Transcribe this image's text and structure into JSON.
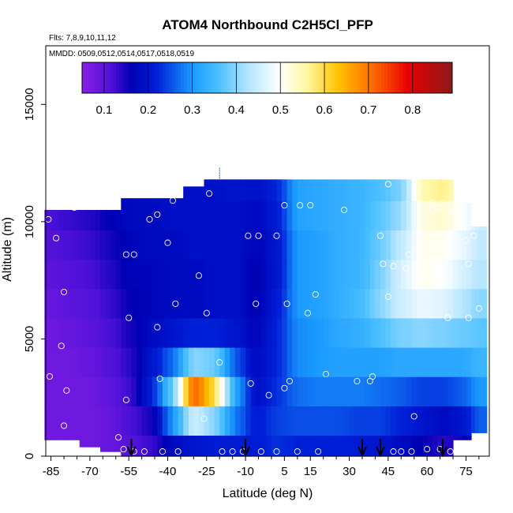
{
  "chart_data": {
    "type": "heatmap",
    "title": "ATOM4 Northbound C2H5Cl_PFP",
    "flights_note": "Flts: 7,8,9,10,11,12",
    "dates_note": "MMDD: 0509,0512,0514,0517,0518,0519",
    "xlabel": "Latitude (deg N)",
    "ylabel": "Altitude (m)",
    "xlim": [
      -87,
      84
    ],
    "ylim": [
      0,
      17500
    ],
    "x_ticks": [
      -85,
      -70,
      -55,
      -40,
      -25,
      -10,
      5,
      15,
      30,
      45,
      60,
      75
    ],
    "x_tick_labels": [
      "-85",
      "-70",
      "-55",
      "-40",
      "-25",
      "-10",
      "5",
      "15",
      "30",
      "45",
      "60",
      "75"
    ],
    "y_ticks": [
      0,
      5000,
      10000,
      15000
    ],
    "y_tick_labels": [
      "0",
      "5000",
      "10000",
      "15000"
    ],
    "colorbar": {
      "range": [
        0.05,
        0.89
      ],
      "ticks": [
        0.1,
        0.2,
        0.3,
        0.4,
        0.5,
        0.6,
        0.7,
        0.8
      ],
      "tick_labels": [
        "0.1",
        "0.2",
        "0.3",
        "0.4",
        "0.5",
        "0.6",
        "0.7",
        "0.8"
      ],
      "stops": [
        {
          "v": 0.05,
          "c": "#8a1fe6"
        },
        {
          "v": 0.12,
          "c": "#4a10d8"
        },
        {
          "v": 0.16,
          "c": "#0000b4"
        },
        {
          "v": 0.22,
          "c": "#0020d8"
        },
        {
          "v": 0.3,
          "c": "#1a9bff"
        },
        {
          "v": 0.36,
          "c": "#4cc0ff"
        },
        {
          "v": 0.43,
          "c": "#b8e6ff"
        },
        {
          "v": 0.5,
          "c": "#ffffff"
        },
        {
          "v": 0.56,
          "c": "#fff7a0"
        },
        {
          "v": 0.63,
          "c": "#ffc400"
        },
        {
          "v": 0.71,
          "c": "#ff6a00"
        },
        {
          "v": 0.79,
          "c": "#e80000"
        },
        {
          "v": 0.89,
          "c": "#8b1a1a"
        }
      ]
    },
    "grid": false,
    "columns": [
      {
        "lat": -86,
        "top": 10500,
        "bottom": 700,
        "vals": [
          0.13,
          0.12,
          0.11,
          0.1,
          0.09,
          0.08,
          0.08,
          0.08,
          0.08,
          0.08
        ]
      },
      {
        "lat": -78,
        "top": 10500,
        "bottom": 700,
        "vals": [
          0.14,
          0.13,
          0.12,
          0.11,
          0.1,
          0.09,
          0.08,
          0.08,
          0.08,
          0.08
        ]
      },
      {
        "lat": -70,
        "top": 10500,
        "bottom": 400,
        "vals": [
          0.15,
          0.14,
          0.13,
          0.12,
          0.11,
          0.1,
          0.09,
          0.08,
          0.08,
          0.08
        ]
      },
      {
        "lat": -62,
        "top": 10500,
        "bottom": 200,
        "vals": [
          0.17,
          0.16,
          0.15,
          0.14,
          0.13,
          0.12,
          0.11,
          0.1,
          0.09,
          0.09
        ]
      },
      {
        "lat": -54,
        "top": 11000,
        "bottom": 0,
        "vals": [
          0.18,
          0.18,
          0.17,
          0.17,
          0.16,
          0.15,
          0.14,
          0.13,
          0.12,
          0.11
        ]
      },
      {
        "lat": -46,
        "top": 11000,
        "bottom": 0,
        "vals": [
          0.19,
          0.18,
          0.18,
          0.17,
          0.17,
          0.18,
          0.2,
          0.22,
          0.15,
          0.13
        ]
      },
      {
        "lat": -38,
        "top": 11000,
        "bottom": 0,
        "vals": [
          0.19,
          0.19,
          0.18,
          0.18,
          0.18,
          0.2,
          0.27,
          0.38,
          0.3,
          0.18
        ]
      },
      {
        "lat": -30,
        "top": 11500,
        "bottom": 0,
        "vals": [
          0.19,
          0.19,
          0.19,
          0.18,
          0.18,
          0.22,
          0.4,
          0.72,
          0.45,
          0.2
        ]
      },
      {
        "lat": -22,
        "top": 11800,
        "bottom": 0,
        "vals": [
          0.19,
          0.19,
          0.19,
          0.19,
          0.19,
          0.22,
          0.38,
          0.6,
          0.4,
          0.21
        ]
      },
      {
        "lat": -14,
        "top": 11800,
        "bottom": 0,
        "vals": [
          0.2,
          0.19,
          0.19,
          0.19,
          0.19,
          0.2,
          0.26,
          0.32,
          0.28,
          0.21
        ]
      },
      {
        "lat": -6,
        "top": 11800,
        "bottom": 0,
        "vals": [
          0.19,
          0.18,
          0.17,
          0.16,
          0.16,
          0.17,
          0.18,
          0.19,
          0.21,
          0.21
        ]
      },
      {
        "lat": 2,
        "top": 11800,
        "bottom": 0,
        "vals": [
          0.22,
          0.21,
          0.2,
          0.2,
          0.21,
          0.22,
          0.22,
          0.23,
          0.24,
          0.23
        ]
      },
      {
        "lat": 10,
        "top": 11800,
        "bottom": 0,
        "vals": [
          0.31,
          0.31,
          0.3,
          0.3,
          0.3,
          0.29,
          0.29,
          0.27,
          0.25,
          0.22
        ]
      },
      {
        "lat": 18,
        "top": 11800,
        "bottom": 0,
        "vals": [
          0.32,
          0.32,
          0.31,
          0.31,
          0.31,
          0.3,
          0.3,
          0.28,
          0.25,
          0.22
        ]
      },
      {
        "lat": 26,
        "top": 11800,
        "bottom": 0,
        "vals": [
          0.33,
          0.33,
          0.33,
          0.33,
          0.33,
          0.32,
          0.31,
          0.28,
          0.25,
          0.22
        ]
      },
      {
        "lat": 34,
        "top": 11800,
        "bottom": 0,
        "vals": [
          0.34,
          0.34,
          0.34,
          0.34,
          0.35,
          0.33,
          0.31,
          0.28,
          0.24,
          0.21
        ]
      },
      {
        "lat": 42,
        "top": 11800,
        "bottom": 0,
        "vals": [
          0.36,
          0.37,
          0.38,
          0.39,
          0.4,
          0.36,
          0.31,
          0.27,
          0.24,
          0.2
        ]
      },
      {
        "lat": 50,
        "top": 11800,
        "bottom": 0,
        "vals": [
          0.39,
          0.41,
          0.44,
          0.46,
          0.45,
          0.39,
          0.32,
          0.26,
          0.22,
          0.18
        ]
      },
      {
        "lat": 58,
        "top": 11800,
        "bottom": 0,
        "vals": [
          0.55,
          0.52,
          0.51,
          0.51,
          0.48,
          0.4,
          0.32,
          0.24,
          0.2,
          0.16
        ]
      },
      {
        "lat": 66,
        "top": 11800,
        "bottom": 0,
        "vals": [
          0.57,
          0.53,
          0.51,
          0.5,
          0.47,
          0.39,
          0.32,
          0.24,
          0.18,
          0.14
        ]
      },
      {
        "lat": 74,
        "top": 10800,
        "bottom": 700,
        "vals": [
          0.52,
          0.5,
          0.48,
          0.46,
          0.43,
          0.38,
          0.32,
          0.26,
          0.2,
          0.15
        ]
      },
      {
        "lat": 80,
        "top": 9800,
        "bottom": 1000,
        "vals": [
          0.47,
          0.45,
          0.44,
          0.43,
          0.4,
          0.37,
          0.34,
          0.3,
          0.26,
          0.22
        ]
      }
    ],
    "samples": [
      [
        -86,
        10100
      ],
      [
        -83,
        9300
      ],
      [
        -80,
        7000
      ],
      [
        -81,
        4700
      ],
      [
        -79,
        2800
      ],
      [
        -80,
        1300
      ],
      [
        -85.5,
        3400
      ],
      [
        -76,
        10600
      ],
      [
        -56,
        8600
      ],
      [
        -53,
        8600
      ],
      [
        -55,
        5900
      ],
      [
        -56,
        2400
      ],
      [
        -59,
        800
      ],
      [
        -57,
        300
      ],
      [
        -53,
        200
      ],
      [
        -49,
        200
      ],
      [
        -47,
        10100
      ],
      [
        -44,
        10300
      ],
      [
        -40,
        9100
      ],
      [
        -44,
        5500
      ],
      [
        -43,
        3300
      ],
      [
        -38,
        10900
      ],
      [
        -37,
        6500
      ],
      [
        -36,
        200
      ],
      [
        -42,
        200
      ],
      [
        -28,
        7700
      ],
      [
        -25,
        6100
      ],
      [
        -24,
        11200
      ],
      [
        -20,
        4000
      ],
      [
        -26,
        1600
      ],
      [
        -19,
        200
      ],
      [
        -15,
        200
      ],
      [
        -9,
        9400
      ],
      [
        -5,
        9400
      ],
      [
        -6,
        6500
      ],
      [
        -8,
        3100
      ],
      [
        -1,
        2600
      ],
      [
        -4,
        200
      ],
      [
        2,
        9400
      ],
      [
        5,
        10700
      ],
      [
        6,
        6500
      ],
      [
        5,
        2900
      ],
      [
        7,
        3200
      ],
      [
        11,
        10700
      ],
      [
        14,
        6100
      ],
      [
        17,
        6900
      ],
      [
        15,
        10700
      ],
      [
        21,
        3500
      ],
      [
        28,
        10500
      ],
      [
        33,
        3200
      ],
      [
        38,
        3200
      ],
      [
        39,
        3400
      ],
      [
        42,
        9400
      ],
      [
        43,
        8200
      ],
      [
        45,
        6800
      ],
      [
        47,
        8100
      ],
      [
        45,
        11600
      ],
      [
        53,
        8600
      ],
      [
        52,
        8000
      ],
      [
        55,
        1700
      ],
      [
        56,
        11200
      ],
      [
        62,
        10500
      ],
      [
        63,
        7900
      ],
      [
        62,
        10800
      ],
      [
        64,
        10600
      ],
      [
        66,
        10800
      ],
      [
        70,
        10400
      ],
      [
        68,
        5900
      ],
      [
        75,
        9200
      ],
      [
        76,
        8200
      ],
      [
        78,
        9400
      ],
      [
        80,
        6300
      ],
      [
        76,
        5900
      ],
      [
        60,
        300
      ],
      [
        65,
        300
      ],
      [
        69,
        200
      ],
      [
        73,
        200
      ],
      [
        50,
        200
      ],
      [
        2,
        200
      ],
      [
        10,
        200
      ],
      [
        18,
        200
      ],
      [
        -11,
        200
      ],
      [
        47,
        200
      ],
      [
        54,
        200
      ]
    ],
    "arrows": [
      -54,
      -10,
      35,
      42,
      66
    ],
    "marker_line_x": -20
  }
}
